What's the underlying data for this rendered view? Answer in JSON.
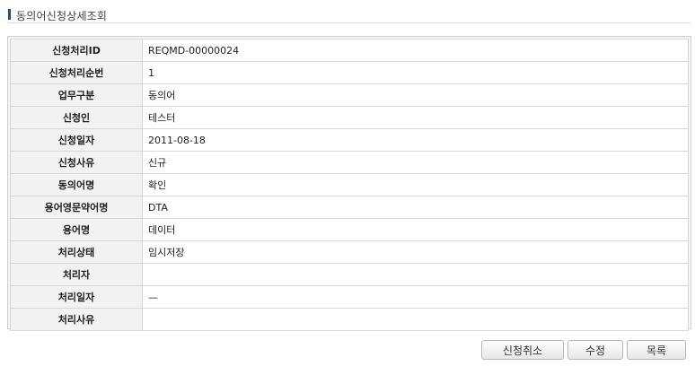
{
  "header": {
    "title": "동의어신청상세조회"
  },
  "detail": {
    "rows": [
      {
        "label": "신청처리ID",
        "value": "REQMD-00000024"
      },
      {
        "label": "신청처리순번",
        "value": "1"
      },
      {
        "label": "업무구분",
        "value": "동의어"
      },
      {
        "label": "신청인",
        "value": "테스터"
      },
      {
        "label": "신청일자",
        "value": "2011-08-18"
      },
      {
        "label": "신청사유",
        "value": "신규"
      },
      {
        "label": "동의어명",
        "value": "확인"
      },
      {
        "label": "용어영문약어명",
        "value": "DTA"
      },
      {
        "label": "용어명",
        "value": "데이터"
      },
      {
        "label": "처리상태",
        "value": "임시저장"
      },
      {
        "label": "처리자",
        "value": ""
      },
      {
        "label": "처리일자",
        "value": "—"
      },
      {
        "label": "처리사유",
        "value": ""
      }
    ]
  },
  "actions": {
    "cancel_label": "신청취소",
    "edit_label": "수정",
    "list_label": "목록"
  },
  "colors": {
    "title_mark": "#1f4e96",
    "header_cell_bg": "#f2f2f2",
    "border": "#d8d8d8"
  }
}
